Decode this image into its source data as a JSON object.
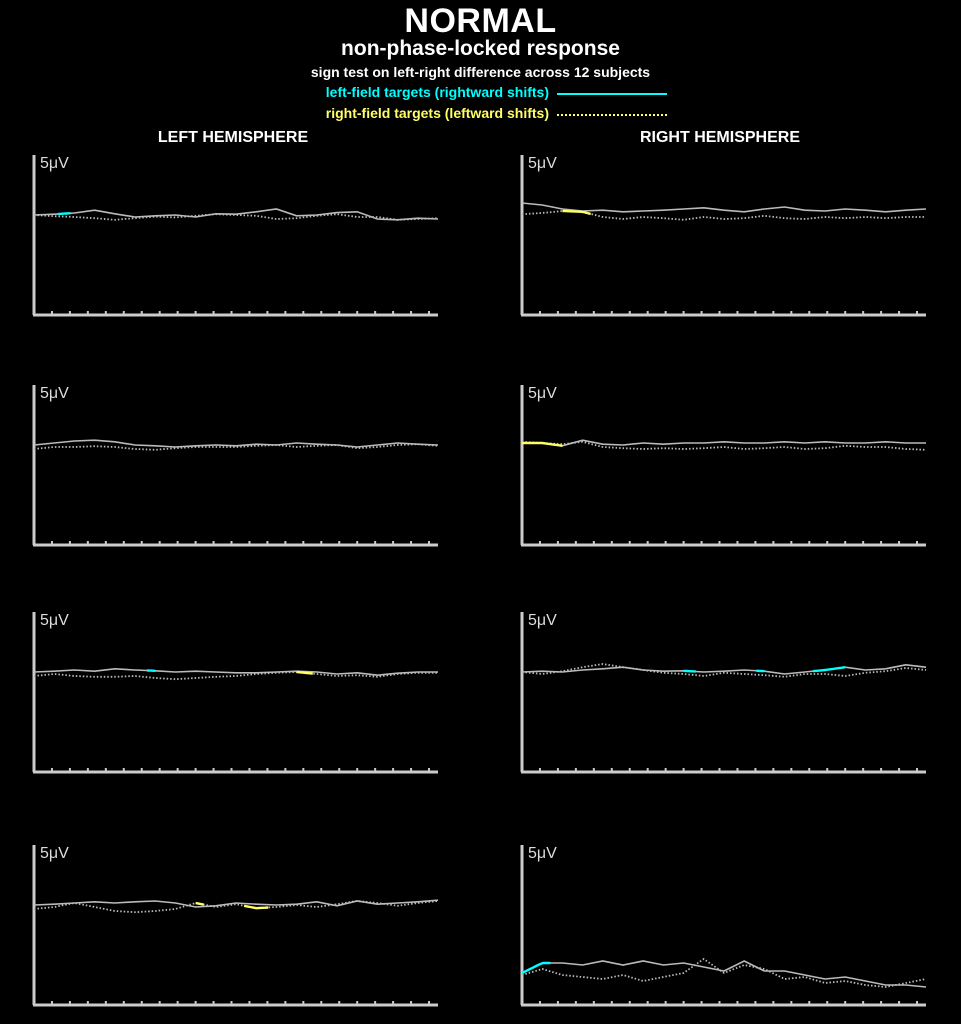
{
  "title": "NORMAL",
  "subtitle": "non-phase-locked response",
  "note": "sign test on left-right difference across 12 subjects",
  "legend": [
    {
      "label": "left-field targets (rightward shifts)",
      "color": "#00ffff",
      "style": "solid",
      "significance_color": "#00ffff"
    },
    {
      "label": "right-field targets (leftward shifts)",
      "color": "#ffff66",
      "style": "dotted",
      "significance_color": "#ffff66"
    }
  ],
  "trace_color": "#bbbbbb",
  "hemispheres": [
    {
      "label": "LEFT HEMISPHERE"
    },
    {
      "label": "RIGHT HEMISPHERE"
    }
  ],
  "chart_data": {
    "type": "line",
    "grid": false,
    "xlim": [
      0,
      100
    ],
    "ylim": [
      -2.5,
      1.5
    ],
    "x_tick_count": 22,
    "panels": [
      {
        "hemisphere": "LEFT HEMISPHERE",
        "row": 1,
        "scale_label": "5μV",
        "x": [
          0,
          5,
          10,
          15,
          20,
          25,
          30,
          35,
          40,
          45,
          50,
          55,
          60,
          65,
          70,
          75,
          80,
          85,
          90,
          95,
          100
        ],
        "series": [
          {
            "style": "solid",
            "values": [
              0,
              0.02,
              0.05,
              0.12,
              0.03,
              -0.05,
              -0.02,
              0,
              -0.05,
              0.03,
              0.02,
              0.08,
              0.15,
              -0.02,
              0,
              0.06,
              0.08,
              -0.1,
              -0.12,
              -0.08,
              -0.1
            ]
          },
          {
            "style": "dotted",
            "values": [
              0,
              -0.03,
              -0.05,
              -0.08,
              -0.12,
              -0.08,
              -0.04,
              -0.06,
              -0.02,
              0.02,
              0,
              -0.02,
              -0.1,
              -0.08,
              -0.02,
              0.02,
              -0.05,
              -0.05,
              -0.12,
              -0.1,
              -0.08
            ]
          }
        ],
        "significant": [
          {
            "series": "solid",
            "color": "#00ffff",
            "x": [
              6,
              9
            ]
          }
        ]
      },
      {
        "hemisphere": "RIGHT HEMISPHERE",
        "row": 1,
        "scale_label": "5μV",
        "x": [
          0,
          5,
          10,
          15,
          20,
          25,
          30,
          35,
          40,
          45,
          50,
          55,
          60,
          65,
          70,
          75,
          80,
          85,
          90,
          95,
          100
        ],
        "series": [
          {
            "style": "solid",
            "values": [
              0.3,
              0.25,
              0.15,
              0.1,
              0.12,
              0.08,
              0.1,
              0.12,
              0.15,
              0.18,
              0.12,
              0.08,
              0.15,
              0.2,
              0.12,
              0.1,
              0.15,
              0.12,
              0.08,
              0.12,
              0.15
            ]
          },
          {
            "style": "dotted",
            "values": [
              0.02,
              0.05,
              0.1,
              0.08,
              -0.05,
              -0.1,
              -0.05,
              -0.08,
              -0.12,
              -0.05,
              -0.1,
              -0.08,
              -0.02,
              -0.08,
              -0.1,
              -0.05,
              -0.08,
              -0.05,
              -0.08,
              -0.05,
              -0.05
            ]
          }
        ],
        "significant": [
          {
            "series": "dotted",
            "color": "#ffff66",
            "x": [
              10,
              17
            ]
          }
        ]
      },
      {
        "hemisphere": "LEFT HEMISPHERE",
        "row": 2,
        "scale_label": "5μV",
        "x": [
          0,
          5,
          10,
          15,
          20,
          25,
          30,
          35,
          40,
          45,
          50,
          55,
          60,
          65,
          70,
          75,
          80,
          85,
          90,
          95,
          100
        ],
        "series": [
          {
            "style": "solid",
            "values": [
              0,
              0.05,
              0.1,
              0.12,
              0.08,
              0,
              -0.02,
              -0.05,
              -0.02,
              0,
              -0.02,
              0.02,
              0,
              0.05,
              0.02,
              0,
              -0.05,
              0,
              0.05,
              0.02,
              0
            ]
          },
          {
            "style": "dotted",
            "values": [
              -0.1,
              -0.05,
              -0.05,
              -0.03,
              -0.05,
              -0.1,
              -0.12,
              -0.08,
              -0.05,
              -0.05,
              -0.05,
              -0.02,
              0,
              -0.05,
              -0.02,
              0,
              -0.08,
              -0.05,
              0,
              0.02,
              -0.02
            ]
          }
        ],
        "significant": []
      },
      {
        "hemisphere": "RIGHT HEMISPHERE",
        "row": 2,
        "scale_label": "5μV",
        "x": [
          0,
          5,
          10,
          15,
          20,
          25,
          30,
          35,
          40,
          45,
          50,
          55,
          60,
          65,
          70,
          75,
          80,
          85,
          90,
          95,
          100
        ],
        "series": [
          {
            "style": "solid",
            "values": [
              0.05,
              0.05,
              -0.02,
              0.12,
              0.02,
              0,
              0.05,
              0.02,
              0.05,
              0.05,
              0.08,
              0.05,
              0.05,
              0.08,
              0.05,
              0.08,
              0.05,
              0.05,
              0.08,
              0.05,
              0.05
            ]
          },
          {
            "style": "dotted",
            "values": [
              0.08,
              0.05,
              0.02,
              0.08,
              -0.05,
              -0.08,
              -0.1,
              -0.08,
              -0.1,
              -0.08,
              -0.05,
              -0.1,
              -0.08,
              -0.05,
              -0.1,
              -0.08,
              -0.02,
              -0.05,
              -0.05,
              -0.1,
              -0.12
            ]
          }
        ],
        "significant": [
          {
            "series": "solid",
            "color": "#ffff66",
            "x": [
              0,
              10
            ]
          }
        ]
      },
      {
        "hemisphere": "LEFT HEMISPHERE",
        "row": 3,
        "scale_label": "5μV",
        "x": [
          0,
          5,
          10,
          15,
          20,
          25,
          30,
          35,
          40,
          45,
          50,
          55,
          60,
          65,
          70,
          75,
          80,
          85,
          90,
          95,
          100
        ],
        "series": [
          {
            "style": "solid",
            "values": [
              0,
              0.02,
              0.05,
              0.02,
              0.08,
              0.05,
              0.03,
              0,
              0.02,
              0,
              -0.02,
              -0.02,
              0,
              0.02,
              0,
              -0.05,
              -0.02,
              -0.08,
              -0.03,
              0,
              0
            ]
          },
          {
            "style": "dotted",
            "values": [
              -0.1,
              -0.05,
              -0.1,
              -0.12,
              -0.12,
              -0.1,
              -0.15,
              -0.18,
              -0.15,
              -0.12,
              -0.1,
              -0.05,
              -0.02,
              0,
              -0.05,
              -0.1,
              -0.08,
              -0.12,
              -0.05,
              -0.02,
              -0.02
            ]
          }
        ],
        "significant": [
          {
            "series": "solid",
            "color": "#00ffff",
            "x": [
              28,
              30
            ]
          },
          {
            "series": "dotted",
            "color": "#ffff66",
            "x": [
              65,
              69
            ]
          }
        ]
      },
      {
        "hemisphere": "RIGHT HEMISPHERE",
        "row": 3,
        "scale_label": "5μV",
        "x": [
          0,
          5,
          10,
          15,
          20,
          25,
          30,
          35,
          40,
          45,
          50,
          55,
          60,
          65,
          70,
          75,
          80,
          85,
          90,
          95,
          100
        ],
        "series": [
          {
            "style": "solid",
            "values": [
              0,
              0.02,
              0,
              0.05,
              0.08,
              0.12,
              0.05,
              0.02,
              0.03,
              0,
              0.02,
              0.05,
              0.02,
              -0.05,
              0,
              0.05,
              0.12,
              0.05,
              0.08,
              0.18,
              0.12
            ]
          },
          {
            "style": "dotted",
            "values": [
              0,
              -0.05,
              0.02,
              0.12,
              0.2,
              0.12,
              0.05,
              -0.02,
              -0.05,
              -0.1,
              -0.02,
              -0.05,
              -0.08,
              -0.12,
              -0.05,
              -0.05,
              -0.1,
              -0.02,
              0.02,
              0.1,
              0.05
            ]
          }
        ],
        "significant": [
          {
            "series": "solid",
            "color": "#00ffff",
            "x": [
              40,
              43
            ]
          },
          {
            "series": "solid",
            "color": "#00ffff",
            "x": [
              58,
              60
            ]
          },
          {
            "series": "solid",
            "color": "#00ffff",
            "x": [
              72,
              80
            ]
          }
        ]
      },
      {
        "hemisphere": "LEFT HEMISPHERE",
        "row": 4,
        "scale_label": "5μV",
        "x": [
          0,
          5,
          10,
          15,
          20,
          25,
          30,
          35,
          40,
          45,
          50,
          55,
          60,
          65,
          70,
          75,
          80,
          85,
          90,
          95,
          100
        ],
        "series": [
          {
            "style": "solid",
            "values": [
              0,
              0.02,
              0.05,
              0.08,
              0.05,
              0.08,
              0.1,
              0.05,
              -0.05,
              -0.02,
              0.05,
              0.02,
              0,
              0.02,
              0.08,
              -0.02,
              0.1,
              0.02,
              0.05,
              0.08,
              0.12
            ]
          },
          {
            "style": "dotted",
            "values": [
              -0.1,
              -0.05,
              0.05,
              -0.05,
              -0.15,
              -0.18,
              -0.15,
              -0.1,
              0.05,
              -0.05,
              0.02,
              -0.08,
              -0.05,
              0,
              -0.05,
              0.02,
              0.1,
              0.05,
              -0.02,
              0.05,
              0.1
            ]
          }
        ],
        "significant": [
          {
            "series": "dotted",
            "color": "#ffff66",
            "x": [
              40,
              42
            ]
          },
          {
            "series": "dotted",
            "color": "#ffff66",
            "x": [
              52,
              58
            ]
          }
        ]
      },
      {
        "hemisphere": "RIGHT HEMISPHERE",
        "row": 4,
        "scale_label": "5μV",
        "x": [
          0,
          5,
          10,
          15,
          20,
          25,
          30,
          35,
          40,
          45,
          50,
          55,
          60,
          65,
          70,
          75,
          80,
          85,
          90,
          95,
          100
        ],
        "series": [
          {
            "style": "solid",
            "values": [
              -1.7,
              -1.45,
              -1.45,
              -1.5,
              -1.4,
              -1.5,
              -1.4,
              -1.5,
              -1.45,
              -1.55,
              -1.65,
              -1.4,
              -1.65,
              -1.65,
              -1.75,
              -1.85,
              -1.8,
              -1.9,
              -2.0,
              -2.0,
              -2.05
            ]
          },
          {
            "style": "dotted",
            "values": [
              -1.75,
              -1.6,
              -1.75,
              -1.8,
              -1.85,
              -1.75,
              -1.9,
              -1.8,
              -1.7,
              -1.35,
              -1.7,
              -1.5,
              -1.6,
              -1.85,
              -1.8,
              -1.95,
              -1.9,
              -2.0,
              -2.05,
              -1.95,
              -1.85
            ]
          }
        ],
        "significant": [
          {
            "series": "solid",
            "color": "#00ffff",
            "x": [
              0,
              7
            ]
          }
        ]
      }
    ]
  }
}
